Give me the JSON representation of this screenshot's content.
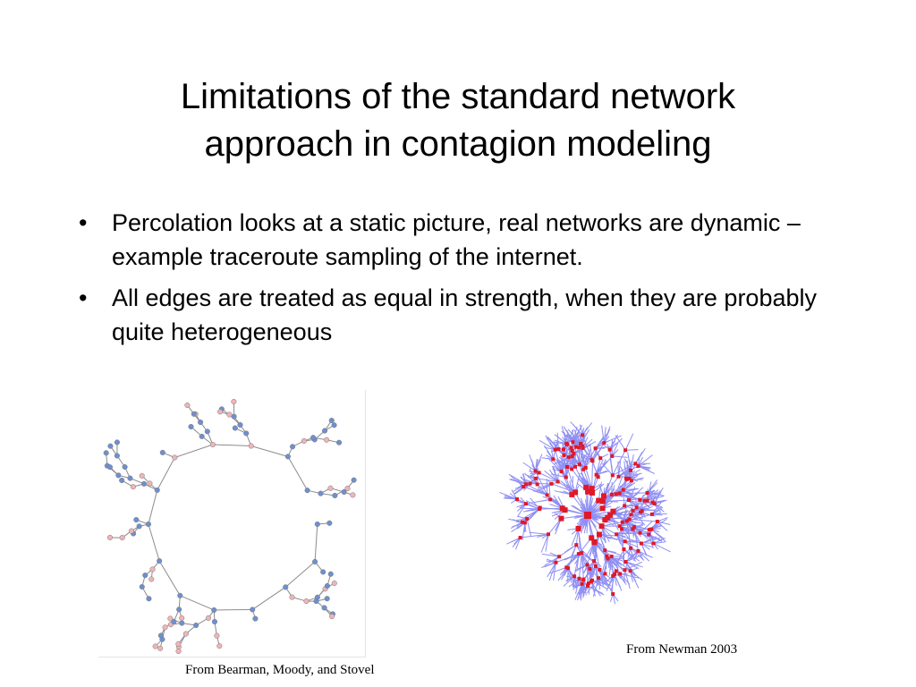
{
  "slide": {
    "title_lines": [
      "Limitations of the standard network",
      "approach in contagion modeling"
    ],
    "bullets": [
      {
        "marker": "•",
        "text": "Percolation looks at a static picture, real networks are dynamic – example traceroute sampling of the internet."
      },
      {
        "marker": "•",
        "text": "All edges are treated as equal in strength, when they are probably quite heterogeneous"
      }
    ],
    "figures": {
      "left": {
        "caption": "From Bearman, Moody, and Stovel",
        "node_colors": {
          "blue": "#6f8fcf",
          "pink": "#efb4b8"
        },
        "edge_color": "#8c8c8c"
      },
      "right": {
        "caption": "From Newman 2003",
        "node_color": "#e01828",
        "edge_color": "#8f8ff4"
      }
    }
  }
}
